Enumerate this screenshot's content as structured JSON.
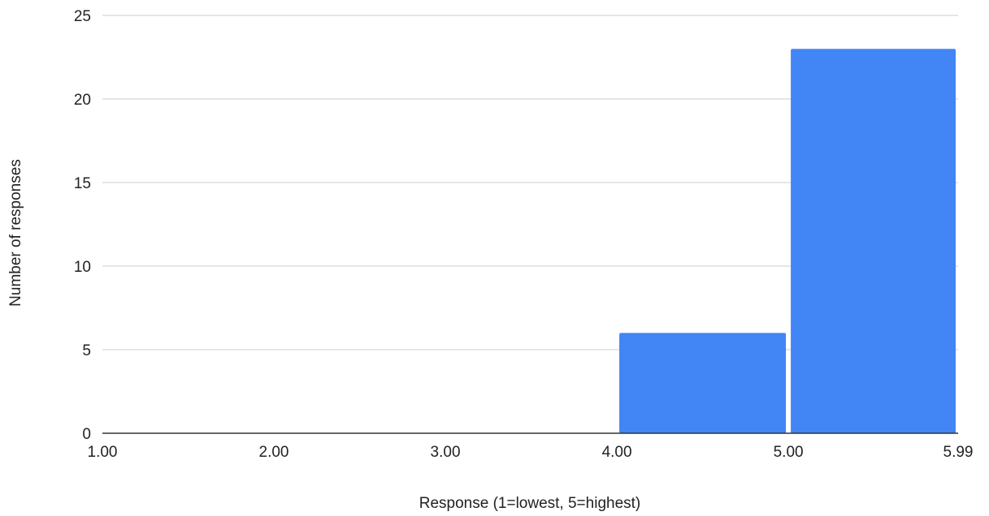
{
  "chart_data": {
    "type": "bar",
    "title": "",
    "xlabel": "Response (1=lowest, 5=highest)",
    "ylabel": "Number of responses",
    "x_tick_labels": [
      "1.00",
      "2.00",
      "3.00",
      "4.00",
      "5.00",
      "5.99"
    ],
    "x_tick_values": [
      1.0,
      2.0,
      3.0,
      4.0,
      5.0,
      5.99
    ],
    "y_ticks": [
      0,
      5,
      10,
      15,
      20,
      25
    ],
    "xlim": [
      1.0,
      5.99
    ],
    "ylim": [
      0,
      25
    ],
    "bins": [
      {
        "start": 1.0,
        "end": 2.0,
        "value": 0
      },
      {
        "start": 2.0,
        "end": 3.0,
        "value": 0
      },
      {
        "start": 3.0,
        "end": 4.0,
        "value": 0
      },
      {
        "start": 4.0,
        "end": 5.0,
        "value": 6
      },
      {
        "start": 5.0,
        "end": 5.99,
        "value": 23
      }
    ],
    "grid": true,
    "bar_color": "#4285F4",
    "grid_color": "#cccccc",
    "axis_color": "#333333"
  }
}
